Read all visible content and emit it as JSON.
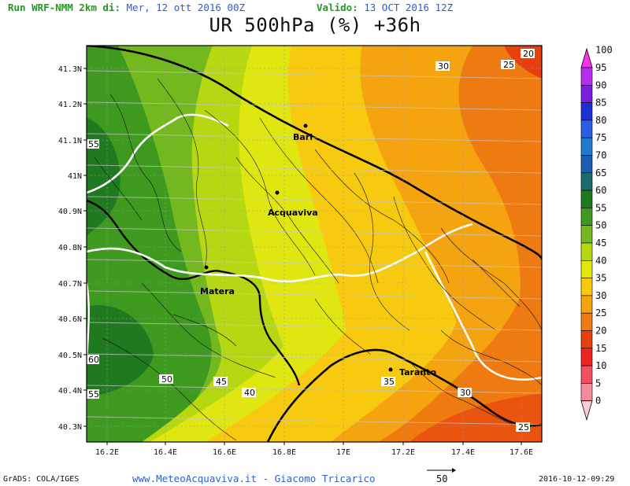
{
  "header": {
    "run_label": "Run WRF-NMM 2km di:",
    "run_date": "Mer, 12 ott 2016 00Z",
    "valid_label": "Valido:",
    "valid_date": "13 OCT 2016 12Z"
  },
  "title": "UR 500hPa (%) +36h",
  "map": {
    "x_ticks": [
      "16.2E",
      "16.4E",
      "16.6E",
      "16.8E",
      "17E",
      "17.2E",
      "17.4E",
      "17.6E"
    ],
    "y_ticks": [
      "41.3N",
      "41.2N",
      "41.1N",
      "41N",
      "40.9N",
      "40.8N",
      "40.7N",
      "40.6N",
      "40.5N",
      "40.4N",
      "40.3N"
    ],
    "cities": [
      "Bari",
      "Acquaviva",
      "Matera",
      "Taranto"
    ],
    "contour_labels": [
      "30",
      "25",
      "20",
      "55",
      "60",
      "55",
      "50",
      "45",
      "40",
      "35",
      "30",
      "25"
    ]
  },
  "colorbar": {
    "labels": [
      "100",
      "95",
      "90",
      "85",
      "80",
      "75",
      "70",
      "65",
      "60",
      "55",
      "50",
      "45",
      "40",
      "35",
      "30",
      "25",
      "20",
      "15",
      "10",
      "5",
      "0"
    ],
    "colors": [
      "#f533e8",
      "#b52ef0",
      "#7a1de0",
      "#1e2fd6",
      "#2a5fe0",
      "#1f7ad0",
      "#1b5db0",
      "#1a6b6b",
      "#1f7a1f",
      "#3e9a1f",
      "#72b81e",
      "#b5d812",
      "#e0e610",
      "#f7c90f",
      "#f5a30e",
      "#ef7a10",
      "#e6400f",
      "#ec2422",
      "#f24f63",
      "#f58b9a",
      "#fbcdd4"
    ]
  },
  "footer": {
    "grads": "GrADS: COLA/IGES",
    "credit": "www.MeteoAcquaviva.it - Giacomo Tricarico",
    "vector_label": "50",
    "timestamp": "2016-10-12-09:29"
  }
}
